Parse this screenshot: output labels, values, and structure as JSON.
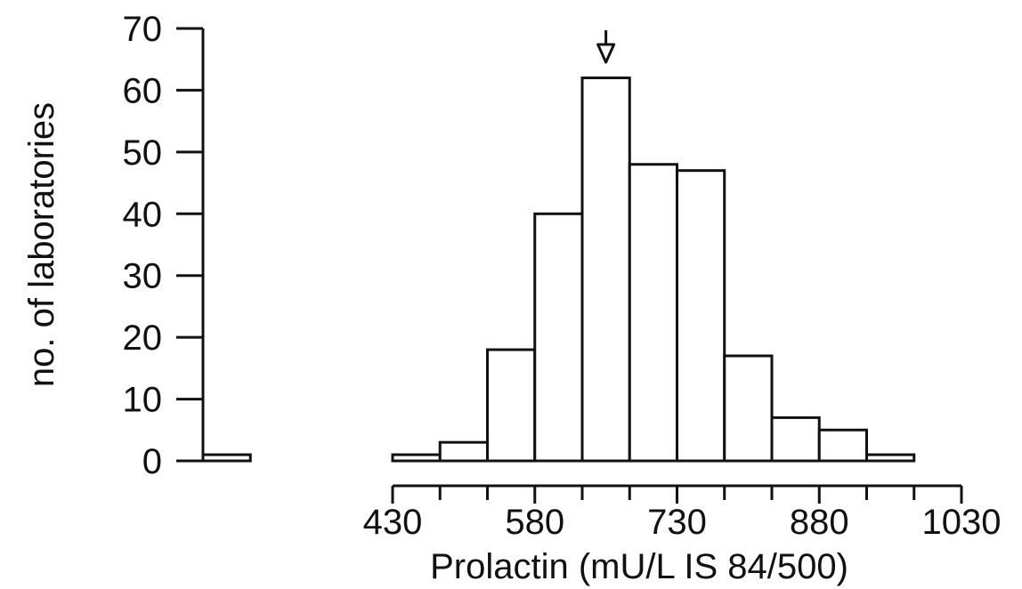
{
  "chart_data": {
    "type": "bar",
    "title": "",
    "xlabel": "Prolactin (mU/L IS 84/500)",
    "ylabel": "no. of laboratories",
    "ylim": [
      0,
      70
    ],
    "yticks": [
      0,
      10,
      20,
      30,
      40,
      50,
      60,
      70
    ],
    "xticks": [
      430,
      580,
      730,
      880,
      1030
    ],
    "xtick_labels": [
      "430",
      "580",
      "730",
      "880",
      "1030"
    ],
    "bin_width": 50,
    "bins": [
      {
        "start": 230,
        "end": 280,
        "value": 1
      },
      {
        "start": 380,
        "end": 430,
        "value": 0
      },
      {
        "start": 430,
        "end": 480,
        "value": 1
      },
      {
        "start": 480,
        "end": 530,
        "value": 3
      },
      {
        "start": 530,
        "end": 580,
        "value": 18
      },
      {
        "start": 580,
        "end": 630,
        "value": 40
      },
      {
        "start": 630,
        "end": 680,
        "value": 62
      },
      {
        "start": 680,
        "end": 730,
        "value": 48
      },
      {
        "start": 730,
        "end": 780,
        "value": 47
      },
      {
        "start": 780,
        "end": 830,
        "value": 17
      },
      {
        "start": 830,
        "end": 880,
        "value": 7
      },
      {
        "start": 880,
        "end": 930,
        "value": 5
      },
      {
        "start": 930,
        "end": 980,
        "value": 1
      }
    ],
    "annotation": {
      "type": "arrow-down",
      "x": 655,
      "y": 67
    },
    "grid": false,
    "colors": {
      "bar_fill": "#ffffff",
      "bar_stroke": "#111111",
      "axis": "#111111"
    }
  }
}
